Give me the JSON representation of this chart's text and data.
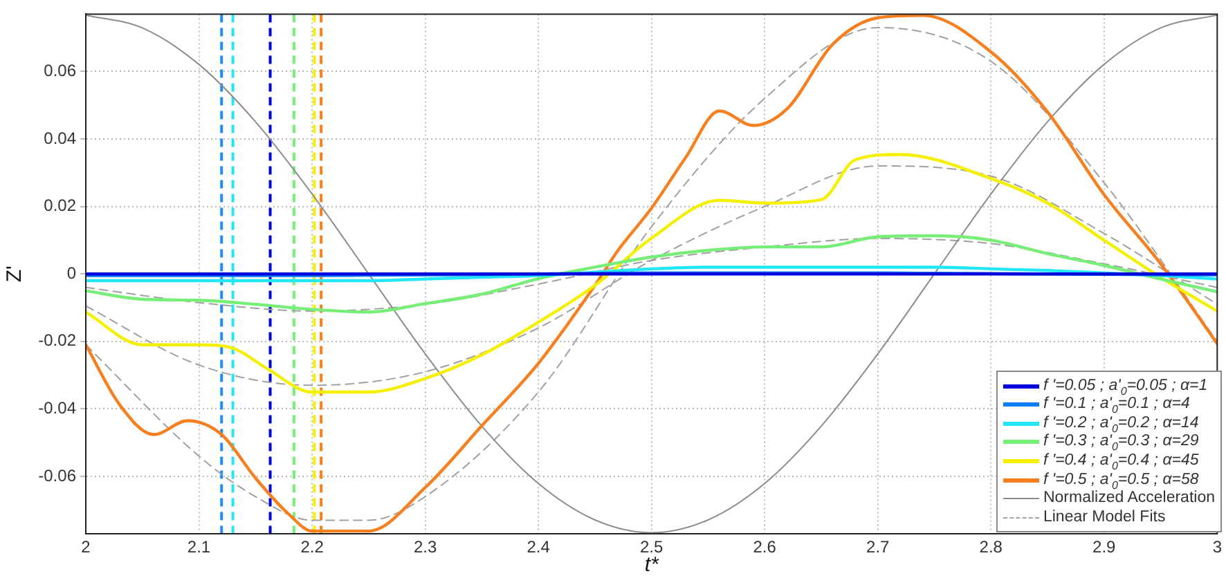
{
  "chart_data": {
    "type": "line",
    "xlabel": "t*",
    "ylabel": "Z'",
    "x": [
      2.0,
      2.05,
      2.1,
      2.15,
      2.2,
      2.25,
      2.3,
      2.35,
      2.4,
      2.45,
      2.5,
      2.55,
      2.6,
      2.65,
      2.7,
      2.75,
      2.8,
      2.85,
      2.9,
      2.95,
      3.0
    ],
    "xlim": [
      2,
      3
    ],
    "xticks": [
      2,
      2.1,
      2.2,
      2.3,
      2.4,
      2.5,
      2.6,
      2.7,
      2.8,
      2.9,
      3
    ],
    "ylim": [
      -0.077,
      0.077
    ],
    "yticks": [
      -0.06,
      -0.04,
      -0.02,
      0,
      0.02,
      0.04,
      0.06
    ],
    "grid": true,
    "legend": "bottom right",
    "marker": "none",
    "series": [
      {
        "name": "f '=0.05 ; a'$_{0}$=0.05 ; α=1",
        "color": "#0000dd",
        "values": [
          0,
          0,
          0,
          0,
          0,
          0,
          0,
          0,
          0,
          0,
          0,
          0,
          0,
          0,
          0,
          0,
          0,
          0,
          0,
          0,
          0
        ]
      },
      {
        "name": "f '=0.1 ; a'$_{0}$=0.1 ; α=4",
        "color": "#0a7cf5",
        "values": [
          -0.0005,
          -0.0005,
          -0.0005,
          -0.0005,
          -0.0005,
          -0.0004,
          -0.0003,
          -0.0002,
          0,
          0.0002,
          0.0003,
          0.0003,
          0.0003,
          0.0003,
          0.0003,
          0.0002,
          0.0001,
          0,
          -0.0001,
          -0.0002,
          -0.0003
        ]
      },
      {
        "name": "f '=0.2 ; a'$_{0}$=0.2 ; α=14",
        "color": "#22e8f5",
        "values": [
          -0.002,
          -0.002,
          -0.002,
          -0.002,
          -0.002,
          -0.002,
          -0.0015,
          -0.001,
          -0.0005,
          0.0005,
          0.0015,
          0.002,
          0.002,
          0.002,
          0.002,
          0.002,
          0.0015,
          0.001,
          0.0003,
          -0.0005,
          -0.0015
        ]
      },
      {
        "name": "f '=0.3 ; a'$_{0}$=0.3 ; α=29",
        "color": "#77ee77",
        "x": [
          2.0,
          2.05,
          2.1,
          2.15,
          2.2,
          2.25,
          2.3,
          2.35,
          2.4,
          2.45,
          2.5,
          2.55,
          2.6,
          2.65,
          2.7,
          2.75,
          2.8,
          2.85,
          2.9,
          2.95,
          3.0
        ],
        "values": [
          -0.005,
          -0.0075,
          -0.0078,
          -0.009,
          -0.0105,
          -0.0113,
          -0.0088,
          -0.006,
          -0.0014,
          0.002,
          0.005,
          0.007,
          0.008,
          0.008,
          0.011,
          0.0113,
          0.01,
          0.006,
          0.0025,
          -0.0015,
          -0.0053
        ]
      },
      {
        "name": "f '=0.4 ; a'$_{0}$=0.4 ; α=45",
        "color": "#f5f000",
        "x": [
          2.0,
          2.05,
          2.1,
          2.13,
          2.16,
          2.2,
          2.25,
          2.3,
          2.35,
          2.4,
          2.45,
          2.5,
          2.56,
          2.6,
          2.65,
          2.68,
          2.72,
          2.8,
          2.85,
          2.9,
          2.95,
          3.0
        ],
        "values": [
          -0.0113,
          -0.021,
          -0.021,
          -0.022,
          -0.028,
          -0.035,
          -0.035,
          -0.031,
          -0.024,
          -0.0143,
          -0.0034,
          0.0106,
          0.0218,
          0.021,
          0.022,
          0.0338,
          0.0354,
          0.0283,
          0.021,
          0.01,
          -0.001,
          -0.011
        ]
      },
      {
        "name": "f '=0.5 ; a'$_{0}$=0.5 ; α=58",
        "color": "#f77f1e",
        "x": [
          2.0,
          2.03,
          2.06,
          2.09,
          2.12,
          2.15,
          2.18,
          2.2,
          2.25,
          2.3,
          2.35,
          2.4,
          2.45,
          2.47,
          2.5,
          2.53,
          2.56,
          2.59,
          2.62,
          2.66,
          2.7,
          2.74,
          2.8,
          2.85,
          2.9,
          2.95,
          3.0
        ],
        "values": [
          -0.021,
          -0.0388,
          -0.0476,
          -0.0435,
          -0.0476,
          -0.0605,
          -0.0714,
          -0.0762,
          -0.0762,
          -0.0633,
          -0.045,
          -0.0265,
          -0.0034,
          0.0068,
          0.0195,
          0.0344,
          0.0483,
          0.044,
          0.049,
          0.068,
          0.0759,
          0.0766,
          0.0658,
          0.048,
          0.0235,
          0.003,
          -0.0207
        ]
      },
      {
        "name": "Normalized Acceleration",
        "color": "#8c8c8c",
        "values": [
          0.0767,
          0.0729,
          0.0621,
          0.0451,
          0.0237,
          0,
          -0.0237,
          -0.0451,
          -0.0621,
          -0.0729,
          -0.0767,
          -0.0729,
          -0.0621,
          -0.0451,
          -0.0237,
          0,
          0.0237,
          0.0451,
          0.0621,
          0.0729,
          0.0767
        ]
      },
      {
        "name": "Linear Model Fits",
        "color": "#a0a0a0",
        "line_style": "dashed",
        "x": [
          2.0,
          2.1,
          2.2,
          2.3,
          2.4,
          2.5,
          2.6,
          2.7,
          2.8,
          2.9,
          3.0
        ],
        "values": [
          -0.004,
          -0.0085,
          -0.011,
          -0.009,
          -0.003,
          0.004,
          0.008,
          0.0105,
          0.009,
          0.003,
          -0.004
        ]
      },
      {
        "color": "#a0a0a0",
        "line_style": "dashed",
        "x": [
          2.0,
          2.1,
          2.2,
          2.3,
          2.4,
          2.5,
          2.6,
          2.7,
          2.8,
          2.9,
          3.0
        ],
        "values": [
          -0.0095,
          -0.027,
          -0.033,
          -0.029,
          -0.016,
          0.004,
          0.02,
          0.032,
          0.029,
          0.012,
          -0.009
        ]
      },
      {
        "color": "#a0a0a0",
        "line_style": "dashed",
        "x": [
          2.0,
          2.1,
          2.15,
          2.2,
          2.25,
          2.3,
          2.4,
          2.5,
          2.6,
          2.7,
          2.8,
          2.9,
          3.0
        ],
        "values": [
          -0.021,
          -0.054,
          -0.066,
          -0.073,
          -0.073,
          -0.066,
          -0.035,
          0.014,
          0.052,
          0.073,
          0.063,
          0.027,
          -0.02
        ]
      }
    ],
    "ref_lines": [
      {
        "axis": "x",
        "value": 2.12,
        "color": "#1f8cf5",
        "line_style": "dashed"
      },
      {
        "axis": "x",
        "value": 2.13,
        "color": "#22e8f5",
        "line_style": "dashed"
      },
      {
        "axis": "x",
        "value": 2.163,
        "color": "#0000dd",
        "line_style": "dashed"
      },
      {
        "axis": "x",
        "value": 2.184,
        "color": "#77ee77",
        "line_style": "dashed"
      },
      {
        "axis": "x",
        "value": 2.202,
        "color": "#f5f000",
        "line_style": "dashed"
      },
      {
        "axis": "x",
        "value": 2.208,
        "color": "#f77f1e",
        "line_style": "dashed"
      }
    ]
  }
}
